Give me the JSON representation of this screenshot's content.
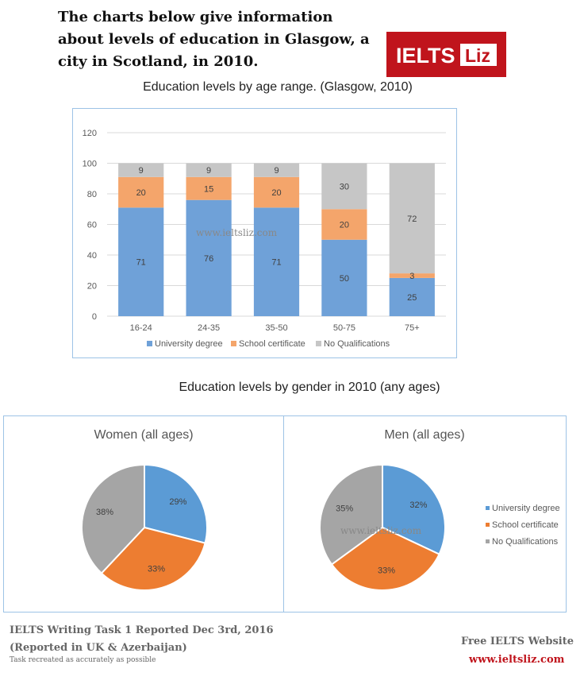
{
  "heading": "The charts below give information about levels of education in Glasgow, a city in Scotland, in 2010.",
  "logo": {
    "left": "IELTS",
    "right": "Liz",
    "bg": "#c0141c",
    "fg": "#ffffff"
  },
  "watermark": "www.ieltsliz.com",
  "colors": {
    "university": "#6fa1d8",
    "school": "#f4a56b",
    "none": "#c6c6c6",
    "pie_university": "#5b9bd5",
    "pie_school": "#ed7d31",
    "pie_none": "#a5a5a5"
  },
  "chart_data": [
    {
      "type": "bar",
      "stacked": true,
      "title": "Education levels by age range. (Glasgow, 2010)",
      "categories": [
        "16-24",
        "24-35",
        "35-50",
        "50-75",
        "75+"
      ],
      "series": [
        {
          "name": "University degree",
          "values": [
            71,
            76,
            71,
            50,
            25
          ]
        },
        {
          "name": "School certificate",
          "values": [
            20,
            15,
            20,
            20,
            3
          ]
        },
        {
          "name": "No Qualifications",
          "values": [
            9,
            9,
            9,
            30,
            72
          ]
        }
      ],
      "ylim": [
        0,
        120
      ],
      "yticks": [
        0,
        20,
        40,
        60,
        80,
        100,
        120
      ],
      "grid": true,
      "legend": "bottom"
    },
    {
      "type": "pie",
      "group_title": "Education levels by gender in 2010 (any ages)",
      "title": "Women (all ages)",
      "labels": [
        "University degree",
        "School certificate",
        "No Qualifications"
      ],
      "values": [
        29,
        33,
        38
      ],
      "value_labels": [
        "29%",
        "33%",
        "38%"
      ]
    },
    {
      "type": "pie",
      "title": "Men (all ages)",
      "labels": [
        "University degree",
        "School certificate",
        "No Qualifications"
      ],
      "values": [
        32,
        33,
        35
      ],
      "value_labels": [
        "32%",
        "33%",
        "35%"
      ],
      "legend": "right"
    }
  ],
  "footer": {
    "line1": "IELTS Writing Task 1 Reported Dec 3rd, 2016",
    "line2": "(Reported in UK & Azerbaijan)",
    "line3": "Task recreated as accurately as possible",
    "site_label": "Free IELTS Website",
    "site_url": "www.ieltsliz.com"
  }
}
